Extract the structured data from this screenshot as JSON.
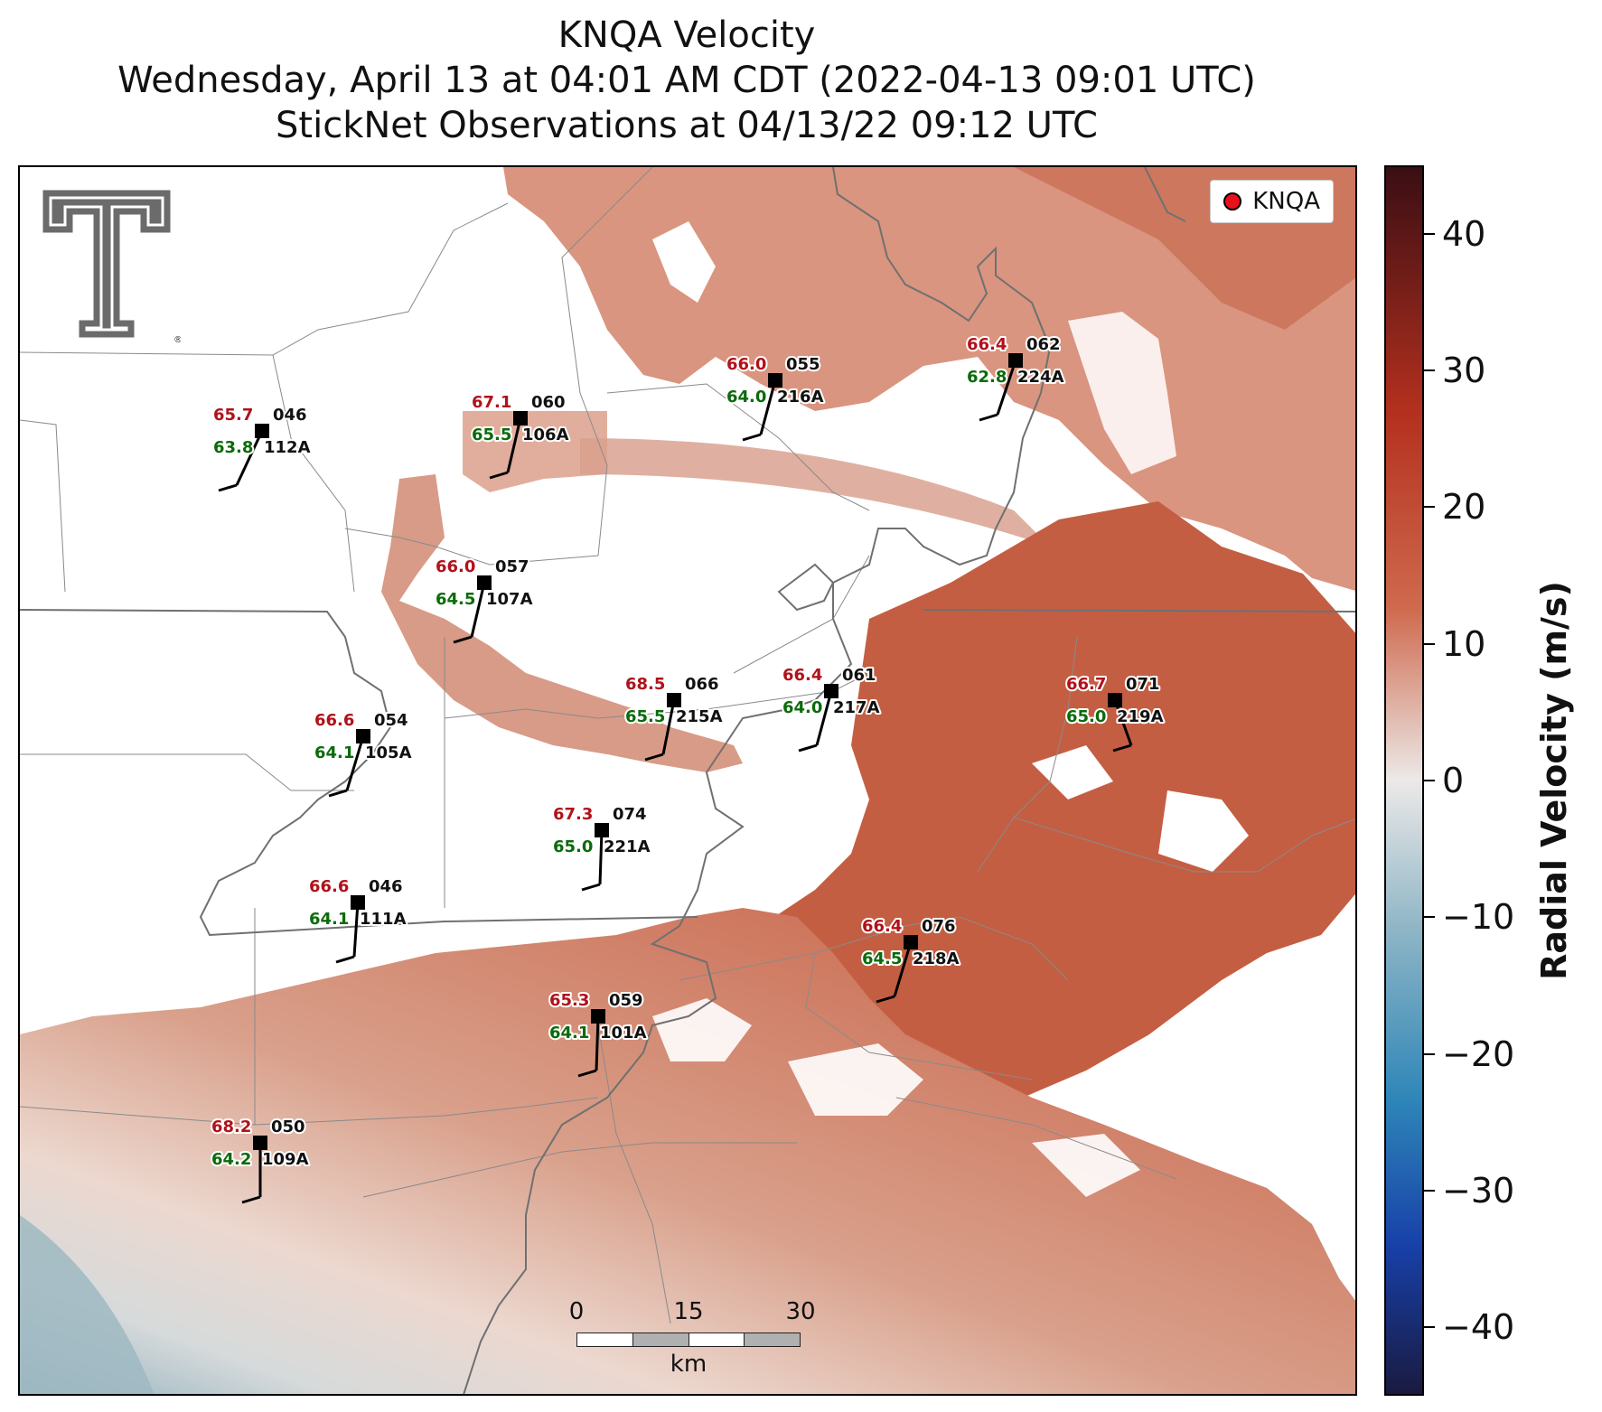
{
  "title": {
    "line1": "KNQA Velocity",
    "line2": "Wednesday, April 13 at 04:01 AM CDT (2022-04-13 09:01 UTC)",
    "line3": "StickNet Observations at 04/13/22 09:12 UTC"
  },
  "legend": {
    "label": "KNQA",
    "marker_color": "#e8101a"
  },
  "logo": {
    "icon": "texas-tech-double-t-logo"
  },
  "colorbar": {
    "title": "Radial Velocity (m/s)",
    "range": [
      -45,
      45
    ],
    "ticks": [
      40,
      30,
      20,
      10,
      0,
      -10,
      -20,
      -30,
      -40
    ],
    "tick_labels": [
      "40",
      "30",
      "20",
      "10",
      "0",
      "−10",
      "−20",
      "−30",
      "−40"
    ],
    "colors": {
      "max": "#3a0e14",
      "high": "#b4301e",
      "mid_high": "#cf6a4e",
      "zero": "#ece9e8",
      "mid_low": "#8fb6c6",
      "low": "#2e86b8",
      "very_low": "#1740a8",
      "min": "#1a1a40"
    }
  },
  "scale_bar": {
    "labels": [
      "0",
      "15",
      "30"
    ],
    "unit": "km"
  },
  "stations": [
    {
      "id": "112A",
      "temp": "65.7",
      "dew": "63.8",
      "dir": "046"
    },
    {
      "id": "106A",
      "temp": "67.1",
      "dew": "65.5",
      "dir": "060"
    },
    {
      "id": "216A",
      "temp": "66.0",
      "dew": "64.0",
      "dir": "055"
    },
    {
      "id": "224A",
      "temp": "66.4",
      "dew": "62.8",
      "dir": "062"
    },
    {
      "id": "107A",
      "temp": "66.0",
      "dew": "64.5",
      "dir": "057"
    },
    {
      "id": "105A",
      "temp": "66.6",
      "dew": "64.1",
      "dir": "054"
    },
    {
      "id": "215A",
      "temp": "68.5",
      "dew": "65.5",
      "dir": "066"
    },
    {
      "id": "217A",
      "temp": "66.4",
      "dew": "64.0",
      "dir": "061"
    },
    {
      "id": "219A",
      "temp": "66.7",
      "dew": "65.0",
      "dir": "071"
    },
    {
      "id": "221A",
      "temp": "67.3",
      "dew": "65.0",
      "dir": "074"
    },
    {
      "id": "111A",
      "temp": "66.6",
      "dew": "64.1",
      "dir": "046"
    },
    {
      "id": "218A",
      "temp": "66.4",
      "dew": "64.5",
      "dir": "076"
    },
    {
      "id": "101A",
      "temp": "65.3",
      "dew": "64.1",
      "dir": "059"
    },
    {
      "id": "109A",
      "temp": "68.2",
      "dew": "64.2",
      "dir": "050"
    }
  ]
}
